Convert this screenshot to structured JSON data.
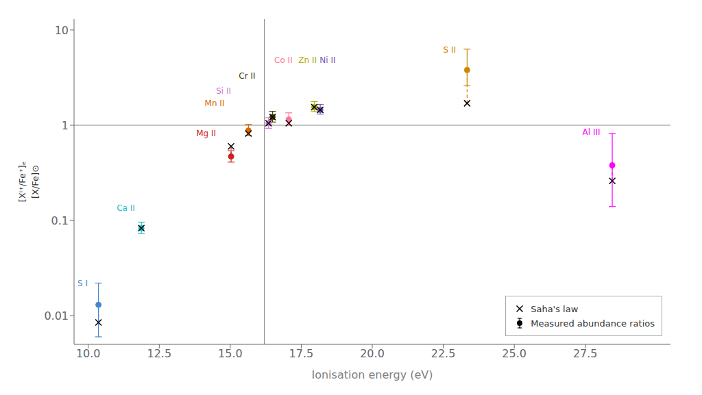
{
  "chart_data": {
    "type": "scatter",
    "xlabel": "Ionisation energy (eV)",
    "ylabel": "[Xⁱ⁺/Fe⁺]ₑ\n[X/Fe]⊙",
    "log": "y",
    "grid": false,
    "legend": "lower right",
    "xlim": [
      9.5,
      30.5
    ],
    "ylim": [
      0.005,
      13.0
    ],
    "xticks": [
      {
        "value": 10,
        "label": "10.0"
      },
      12.5,
      {
        "value": 15,
        "label": "15.0"
      },
      17.5,
      {
        "value": 20,
        "label": "20.0"
      },
      22.5,
      {
        "value": 25,
        "label": "25.0"
      },
      27.5
    ],
    "yticks": [
      0.01,
      0.1,
      1,
      10
    ],
    "reference_lines": {
      "x": 16.2,
      "y": 1.0
    },
    "series": [
      {
        "name": "Saha's law",
        "marker": "x",
        "color": "black",
        "x": [
          10.36,
          11.87,
          15.03,
          15.64,
          16.35,
          16.49,
          17.06,
          17.96,
          18.17,
          23.34,
          28.45
        ],
        "values": [
          0.0085,
          0.083,
          0.6,
          0.82,
          1.05,
          1.22,
          1.05,
          1.55,
          1.45,
          1.7,
          0.26
        ]
      },
      {
        "name": "Measured abundance ratios",
        "marker": "circle",
        "line_style": "dashed",
        "colors": [
          "#4488cc",
          "#22bbcc",
          "#cc2222",
          "#dd6600",
          "#cc77cc",
          "#444400",
          "#ff7799",
          "#aaaa00",
          "#7755bb",
          "#cc8800",
          "#ff00ff"
        ],
        "x": [
          10.36,
          11.87,
          15.03,
          15.64,
          16.35,
          16.49,
          17.06,
          17.96,
          18.17,
          23.34,
          28.45
        ],
        "values": [
          0.013,
          0.083,
          0.47,
          0.88,
          1.05,
          1.22,
          1.15,
          1.55,
          1.45,
          3.8,
          0.38
        ],
        "error_up": [
          0.009,
          0.013,
          0.07,
          0.14,
          0.15,
          0.18,
          0.2,
          0.22,
          0.2,
          2.5,
          0.44
        ],
        "error_down": [
          0.007,
          0.01,
          0.06,
          0.1,
          0.12,
          0.14,
          0.15,
          0.16,
          0.14,
          1.2,
          0.24
        ]
      }
    ],
    "annotations": [
      {
        "text": "S I",
        "x": 9.62,
        "y": 0.022,
        "color": "#4488cc"
      },
      {
        "text": "Ca II",
        "x": 11.0,
        "y": 0.135,
        "color": "#22bbcc"
      },
      {
        "text": "Mg II",
        "x": 13.8,
        "y": 0.82,
        "color": "#cc2222"
      },
      {
        "text": "Mn II",
        "x": 14.1,
        "y": 1.7,
        "color": "#dd6600"
      },
      {
        "text": "Si II",
        "x": 14.5,
        "y": 2.3,
        "color": "#cc77cc"
      },
      {
        "text": "Cr II",
        "x": 15.3,
        "y": 3.3,
        "color": "#444400"
      },
      {
        "text": "Co II",
        "x": 16.55,
        "y": 4.8,
        "color": "#ff7799"
      },
      {
        "text": "Zn II",
        "x": 17.4,
        "y": 4.8,
        "color": "#aaaa00"
      },
      {
        "text": "Ni II",
        "x": 18.15,
        "y": 4.8,
        "color": "#7755bb"
      },
      {
        "text": "S II",
        "x": 22.5,
        "y": 6.2,
        "color": "#cc8800"
      },
      {
        "text": "Al III",
        "x": 27.4,
        "y": 0.85,
        "color": "#ff00ff"
      }
    ]
  }
}
